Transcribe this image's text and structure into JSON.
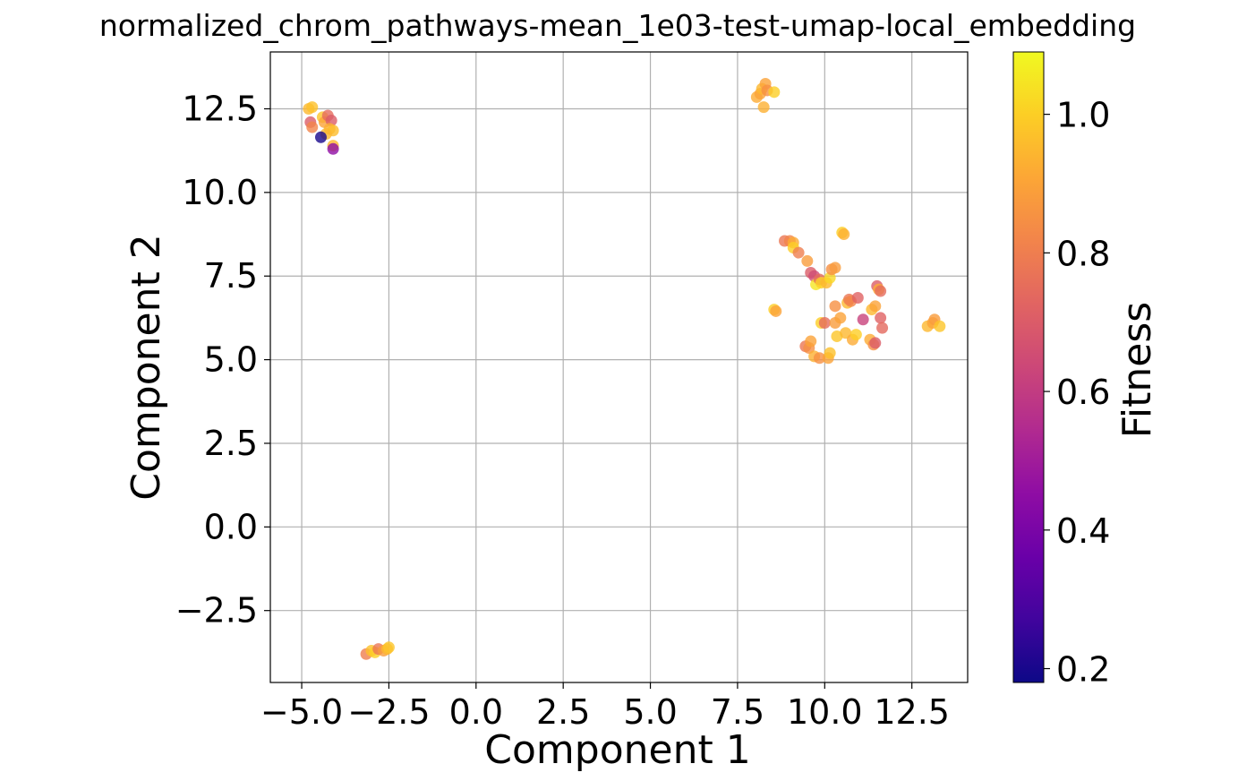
{
  "chart_data": {
    "type": "scatter",
    "title": "normalized_chrom_pathways-mean_1e03-test-umap-local_embedding",
    "xlabel": "Component 1",
    "ylabel": "Component 2",
    "xlim": [
      -5.9,
      14.1
    ],
    "ylim": [
      -4.65,
      14.2
    ],
    "xticks": [
      -5.0,
      -2.5,
      0.0,
      2.5,
      5.0,
      7.5,
      10.0,
      12.5
    ],
    "yticks": [
      -2.5,
      0.0,
      2.5,
      5.0,
      7.5,
      10.0,
      12.5
    ],
    "xtick_labels": [
      "−5.0",
      "−2.5",
      "0.0",
      "2.5",
      "5.0",
      "7.5",
      "10.0",
      "12.5"
    ],
    "ytick_labels": [
      "−2.5",
      "0.0",
      "2.5",
      "5.0",
      "7.5",
      "10.0",
      "12.5"
    ],
    "grid": true,
    "colormap": "plasma",
    "colorbar": {
      "label": "Fitness",
      "range": [
        0.18,
        1.09
      ],
      "ticks": [
        0.2,
        0.4,
        0.6,
        0.8,
        1.0
      ],
      "tick_labels": [
        "0.2",
        "0.4",
        "0.6",
        "0.8",
        "1.0"
      ]
    },
    "points": [
      {
        "x": -4.8,
        "y": 12.5,
        "c": 0.95
      },
      {
        "x": -4.7,
        "y": 12.55,
        "c": 0.97
      },
      {
        "x": -4.75,
        "y": 12.1,
        "c": 0.7
      },
      {
        "x": -4.7,
        "y": 11.95,
        "c": 0.82
      },
      {
        "x": -4.4,
        "y": 12.25,
        "c": 0.98
      },
      {
        "x": -4.35,
        "y": 12.1,
        "c": 0.9
      },
      {
        "x": -4.25,
        "y": 12.3,
        "c": 0.75
      },
      {
        "x": -4.15,
        "y": 12.15,
        "c": 0.7
      },
      {
        "x": -4.2,
        "y": 11.9,
        "c": 0.93
      },
      {
        "x": -4.1,
        "y": 11.85,
        "c": 0.96
      },
      {
        "x": -4.3,
        "y": 11.75,
        "c": 0.95
      },
      {
        "x": -4.45,
        "y": 11.65,
        "c": 0.2
      },
      {
        "x": -4.1,
        "y": 11.4,
        "c": 0.95
      },
      {
        "x": -4.1,
        "y": 11.3,
        "c": 0.45
      },
      {
        "x": 8.05,
        "y": 12.85,
        "c": 0.92
      },
      {
        "x": 8.15,
        "y": 12.95,
        "c": 0.9
      },
      {
        "x": 8.2,
        "y": 13.1,
        "c": 0.95
      },
      {
        "x": 8.3,
        "y": 13.25,
        "c": 0.9
      },
      {
        "x": 8.35,
        "y": 13.05,
        "c": 0.85
      },
      {
        "x": 8.55,
        "y": 13.0,
        "c": 1.0
      },
      {
        "x": 8.25,
        "y": 12.55,
        "c": 0.93
      },
      {
        "x": 8.85,
        "y": 8.55,
        "c": 0.78
      },
      {
        "x": 9.0,
        "y": 8.55,
        "c": 0.82
      },
      {
        "x": 9.1,
        "y": 8.5,
        "c": 0.92
      },
      {
        "x": 9.1,
        "y": 8.35,
        "c": 1.0
      },
      {
        "x": 9.25,
        "y": 8.2,
        "c": 0.8
      },
      {
        "x": 9.5,
        "y": 7.95,
        "c": 0.88
      },
      {
        "x": 9.6,
        "y": 7.6,
        "c": 0.7
      },
      {
        "x": 9.7,
        "y": 7.5,
        "c": 0.65
      },
      {
        "x": 9.75,
        "y": 7.25,
        "c": 1.05
      },
      {
        "x": 9.85,
        "y": 7.4,
        "c": 0.75
      },
      {
        "x": 9.9,
        "y": 7.3,
        "c": 1.0
      },
      {
        "x": 10.05,
        "y": 7.3,
        "c": 0.95
      },
      {
        "x": 10.15,
        "y": 7.45,
        "c": 1.02
      },
      {
        "x": 10.2,
        "y": 7.7,
        "c": 0.85
      },
      {
        "x": 10.3,
        "y": 7.75,
        "c": 0.88
      },
      {
        "x": 10.5,
        "y": 8.8,
        "c": 1.0
      },
      {
        "x": 10.55,
        "y": 8.75,
        "c": 0.93
      },
      {
        "x": 8.55,
        "y": 6.5,
        "c": 1.0
      },
      {
        "x": 8.6,
        "y": 6.45,
        "c": 0.9
      },
      {
        "x": 10.3,
        "y": 6.6,
        "c": 0.85
      },
      {
        "x": 10.65,
        "y": 6.7,
        "c": 0.95
      },
      {
        "x": 10.7,
        "y": 6.8,
        "c": 0.78
      },
      {
        "x": 10.75,
        "y": 6.75,
        "c": 0.82
      },
      {
        "x": 10.95,
        "y": 6.85,
        "c": 0.72
      },
      {
        "x": 11.1,
        "y": 6.2,
        "c": 0.62
      },
      {
        "x": 11.35,
        "y": 6.5,
        "c": 0.95
      },
      {
        "x": 11.45,
        "y": 6.6,
        "c": 0.9
      },
      {
        "x": 11.5,
        "y": 7.2,
        "c": 0.7
      },
      {
        "x": 11.55,
        "y": 7.1,
        "c": 0.92
      },
      {
        "x": 11.6,
        "y": 7.05,
        "c": 0.75
      },
      {
        "x": 11.6,
        "y": 6.25,
        "c": 0.72
      },
      {
        "x": 11.65,
        "y": 5.95,
        "c": 0.74
      },
      {
        "x": 9.9,
        "y": 6.1,
        "c": 1.0
      },
      {
        "x": 10.0,
        "y": 6.1,
        "c": 0.75
      },
      {
        "x": 10.3,
        "y": 6.1,
        "c": 0.88
      },
      {
        "x": 10.45,
        "y": 6.25,
        "c": 0.9
      },
      {
        "x": 10.35,
        "y": 5.7,
        "c": 0.98
      },
      {
        "x": 10.6,
        "y": 5.8,
        "c": 0.95
      },
      {
        "x": 10.8,
        "y": 5.6,
        "c": 0.92
      },
      {
        "x": 10.9,
        "y": 5.75,
        "c": 1.0
      },
      {
        "x": 11.3,
        "y": 5.6,
        "c": 0.92
      },
      {
        "x": 11.4,
        "y": 5.45,
        "c": 0.85
      },
      {
        "x": 11.45,
        "y": 5.5,
        "c": 0.7
      },
      {
        "x": 9.45,
        "y": 5.4,
        "c": 0.78
      },
      {
        "x": 9.55,
        "y": 5.35,
        "c": 0.85
      },
      {
        "x": 9.6,
        "y": 5.55,
        "c": 0.9
      },
      {
        "x": 9.7,
        "y": 5.1,
        "c": 0.93
      },
      {
        "x": 9.85,
        "y": 5.05,
        "c": 0.85
      },
      {
        "x": 10.1,
        "y": 5.05,
        "c": 0.9
      },
      {
        "x": 10.15,
        "y": 5.2,
        "c": 0.97
      },
      {
        "x": 12.95,
        "y": 6.0,
        "c": 0.95
      },
      {
        "x": 13.1,
        "y": 6.1,
        "c": 0.9
      },
      {
        "x": 13.15,
        "y": 6.2,
        "c": 0.88
      },
      {
        "x": 13.3,
        "y": 6.0,
        "c": 0.98
      },
      {
        "x": -3.15,
        "y": -3.8,
        "c": 0.8
      },
      {
        "x": -3.0,
        "y": -3.7,
        "c": 0.97
      },
      {
        "x": -2.9,
        "y": -3.75,
        "c": 1.0
      },
      {
        "x": -2.8,
        "y": -3.65,
        "c": 0.78
      },
      {
        "x": -2.65,
        "y": -3.7,
        "c": 0.88
      },
      {
        "x": -2.55,
        "y": -3.65,
        "c": 0.95
      },
      {
        "x": -2.5,
        "y": -3.6,
        "c": 0.98
      }
    ]
  }
}
